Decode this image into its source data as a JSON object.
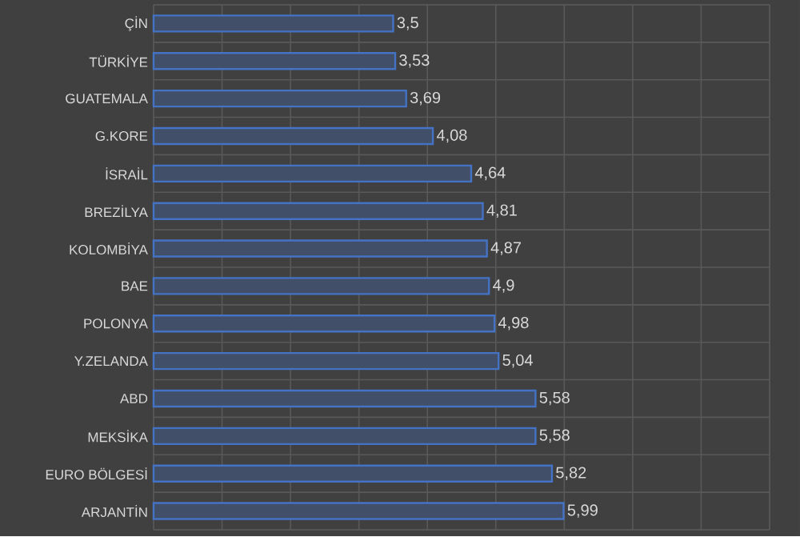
{
  "chart_data": {
    "type": "bar",
    "orientation": "horizontal",
    "categories": [
      "ÇİN",
      "TÜRKİYE",
      "GUATEMALA",
      "G.KORE",
      "İSRAİL",
      "BREZİLYA",
      "KOLOMBİYA",
      "BAE",
      "POLONYA",
      "Y.ZELANDA",
      "ABD",
      "MEKSİKA",
      "EURO BÖLGESİ",
      "ARJANTİN"
    ],
    "values": [
      3.5,
      3.53,
      3.69,
      4.08,
      4.64,
      4.81,
      4.87,
      4.9,
      4.98,
      5.04,
      5.58,
      5.58,
      5.82,
      5.99
    ],
    "value_labels": [
      "3,5",
      "3,53",
      "3,69",
      "4,08",
      "4,64",
      "4,81",
      "4,87",
      "4,9",
      "4,98",
      "5,04",
      "5,58",
      "5,58",
      "5,82",
      "5,99"
    ],
    "color": "#4472c4",
    "xlim": [
      0,
      9
    ],
    "xticks": [
      {
        "value": 0,
        "label": null
      },
      {
        "value": 1,
        "label": null
      },
      {
        "value": 2,
        "label": null
      },
      {
        "value": 3,
        "label": null
      },
      {
        "value": 4,
        "label": null
      },
      {
        "value": 5,
        "label": null
      },
      {
        "value": 6,
        "label": null
      },
      {
        "value": 7,
        "label": null
      },
      {
        "value": 8,
        "label": null
      },
      {
        "value": 9,
        "label": null
      }
    ],
    "tick_labels": "y",
    "grid": true
  }
}
